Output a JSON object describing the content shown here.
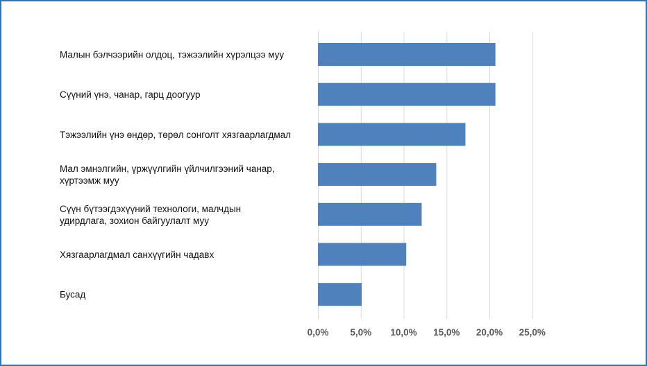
{
  "chart_data": {
    "type": "bar",
    "orientation": "horizontal",
    "title": "",
    "xlabel": "",
    "ylabel": "",
    "categories": [
      [
        "Малын бэлчээрийн олдоц, тэжээлийн хүрэлцээ муу"
      ],
      [
        "Сүүний үнэ, чанар, гарц доогуур"
      ],
      [
        "Тэжээлийн үнэ өндөр, төрөл сонголт хязгаарлагдмал"
      ],
      [
        "Мал эмнэлгийн, үржүүлгийн үйлчилгээний чанар,",
        "хүртээмж муу"
      ],
      [
        "Сүүн бүтээгдэхүүний технологи, малчдын",
        "удирдлага, зохион байгуулалт муу"
      ],
      [
        "Хязгаарлагдмал санхүүгийн чадавх"
      ],
      [
        "Бусад"
      ]
    ],
    "values": [
      20.7,
      20.7,
      17.2,
      13.8,
      12.1,
      10.3,
      5.1
    ],
    "xlim": [
      0,
      25
    ],
    "xticks": [
      0,
      5,
      10,
      15,
      20,
      25
    ],
    "xtick_labels": [
      "0,0%",
      "5,0%",
      "10,0%",
      "15,0%",
      "20,0%",
      "25,0%"
    ],
    "grid": "vertical",
    "legend": "none",
    "colors": {
      "bar": "#4f81bd",
      "grid": "#d9d9d9",
      "frame": "#2e75b6"
    }
  }
}
